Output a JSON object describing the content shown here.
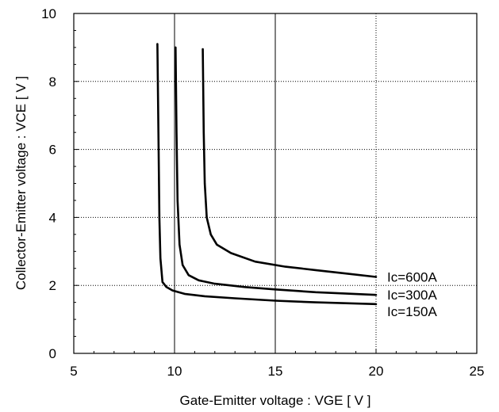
{
  "chart_data": {
    "type": "line",
    "xlabel": "Gate-Emitter voltage : VGE [ V ]",
    "ylabel": "Collector-Emitter voltage : VCE [ V ]",
    "xlim": [
      5,
      25
    ],
    "ylim": [
      0,
      10
    ],
    "xticks": [
      "5",
      "10",
      "15",
      "20",
      "25"
    ],
    "yticks": [
      "0",
      "2",
      "4",
      "6",
      "8",
      "10"
    ],
    "grid": true,
    "series": [
      {
        "name": "Ic=150A",
        "x": [
          9.15,
          9.2,
          9.25,
          9.3,
          9.4,
          9.6,
          9.9,
          10.5,
          11.5,
          13,
          15,
          17,
          20
        ],
        "y": [
          9.1,
          6.5,
          4.0,
          2.8,
          2.1,
          1.95,
          1.85,
          1.75,
          1.68,
          1.62,
          1.55,
          1.5,
          1.45
        ]
      },
      {
        "name": "Ic=300A",
        "x": [
          10.05,
          10.1,
          10.15,
          10.25,
          10.4,
          10.7,
          11.2,
          12,
          13.5,
          15,
          17,
          20
        ],
        "y": [
          9.0,
          6.5,
          4.5,
          3.2,
          2.6,
          2.3,
          2.15,
          2.05,
          1.95,
          1.88,
          1.8,
          1.72
        ]
      },
      {
        "name": "Ic=600A",
        "x": [
          11.4,
          11.45,
          11.5,
          11.6,
          11.8,
          12.1,
          12.8,
          14,
          15.5,
          17,
          18.5,
          20
        ],
        "y": [
          8.95,
          6.5,
          5.0,
          4.0,
          3.5,
          3.2,
          2.95,
          2.7,
          2.55,
          2.45,
          2.35,
          2.25
        ]
      }
    ]
  }
}
